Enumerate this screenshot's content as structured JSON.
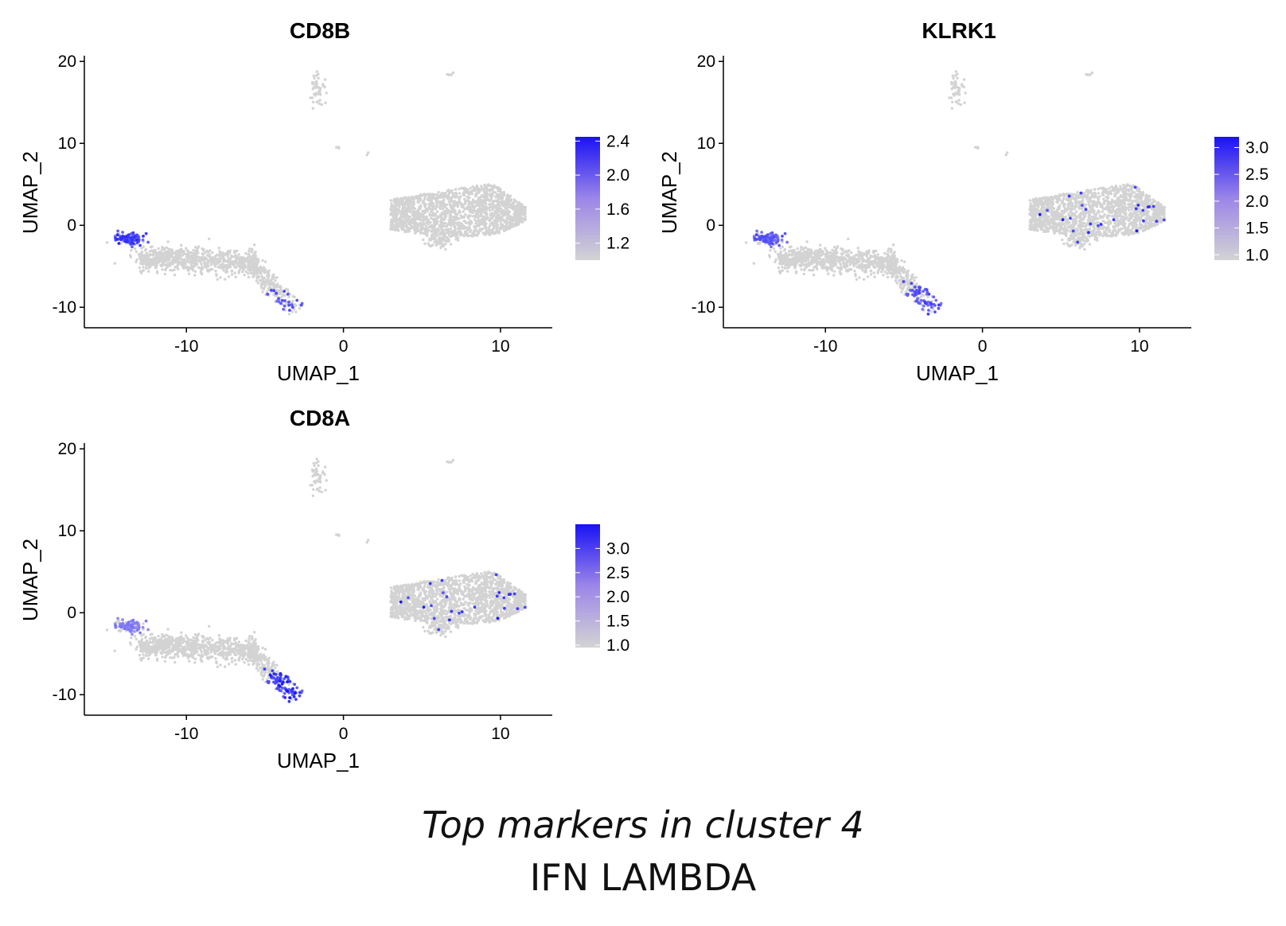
{
  "caption": {
    "line1": "Top markers in cluster 4",
    "line2": "IFN LAMBDA"
  },
  "colors": {
    "low": "#d3d3d3",
    "high": "#0000ff",
    "axis": "#000000"
  },
  "chart_data": [
    {
      "type": "scatter",
      "title": "CD8B",
      "xlabel": "UMAP_1",
      "ylabel": "UMAP_2",
      "xlim": [
        -16.5,
        13.3
      ],
      "ylim": [
        -12.5,
        20.7
      ],
      "xticks": [
        -10,
        0,
        10
      ],
      "yticks": [
        -10,
        0,
        10,
        20
      ],
      "legend": {
        "placement": "right",
        "min": 1.0,
        "max": 2.45,
        "ticks": [
          "1.2",
          "1.6",
          "2.0",
          "2.4"
        ],
        "tick_values": [
          1.2,
          1.6,
          2.0,
          2.4
        ]
      },
      "highlights": [
        "left-tip-strong",
        "tail-weak"
      ]
    },
    {
      "type": "scatter",
      "title": "KLRK1",
      "xlabel": "UMAP_1",
      "ylabel": "UMAP_2",
      "xlim": [
        -16.5,
        13.3
      ],
      "ylim": [
        -12.5,
        20.7
      ],
      "xticks": [
        -10,
        0,
        10
      ],
      "yticks": [
        -10,
        0,
        10,
        20
      ],
      "legend": {
        "placement": "right",
        "min": 0.9,
        "max": 3.2,
        "ticks": [
          "1.0",
          "1.5",
          "2.0",
          "2.5",
          "3.0"
        ],
        "tick_values": [
          1.0,
          1.5,
          2.0,
          2.5,
          3.0
        ]
      },
      "highlights": [
        "left-tip-medium",
        "tail-medium",
        "right-scatter"
      ]
    },
    {
      "type": "scatter",
      "title": "CD8A",
      "xlabel": "UMAP_1",
      "ylabel": "UMAP_2",
      "xlim": [
        -16.5,
        13.3
      ],
      "ylim": [
        -12.5,
        20.7
      ],
      "xticks": [
        -10,
        0,
        10
      ],
      "yticks": [
        -10,
        0,
        10,
        20
      ],
      "legend": {
        "placement": "right",
        "min": 0.95,
        "max": 3.5,
        "ticks": [
          "1.0",
          "1.5",
          "2.0",
          "2.5",
          "3.0"
        ],
        "tick_values": [
          1.0,
          1.5,
          2.0,
          2.5,
          3.0
        ]
      },
      "highlights": [
        "left-tip-weak",
        "tail-strong",
        "right-scatter"
      ]
    }
  ]
}
